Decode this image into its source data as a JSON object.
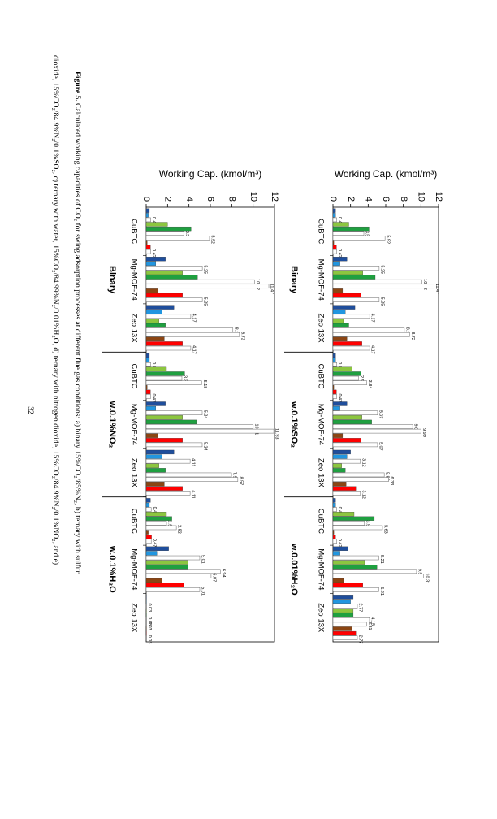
{
  "chart_data": [
    {
      "type": "bar",
      "ylabel": "Working Cap. (kmol/m³)",
      "groups": [
        "Binary",
        "w.0.1%SO₂",
        "w.0.01%H₂O"
      ],
      "categories": [
        "CuBTC",
        "Mg-MOF-74",
        "Zeo 13X",
        "CuBTC",
        "Mg-MOF-74",
        "Zeo 13X",
        "CuBTC",
        "Mg-MOF-74",
        "Zeo 13X"
      ],
      "ylim": [
        0,
        12
      ],
      "yticks": [
        0,
        2,
        4,
        6,
        8,
        10,
        12
      ],
      "series": [
        {
          "color": "#1f4e9c",
          "values": [
            0.3,
            1.6,
            2.5,
            0.3,
            1.6,
            2.0,
            0.3,
            1.7,
            2.3
          ]
        },
        {
          "color": "#2196e0",
          "values": [
            0.3,
            0.8,
            1.4,
            0.3,
            0.8,
            1.6,
            0.3,
            0.8,
            2.0
          ]
        },
        {
          "color": "#8cc63f",
          "values": [
            1.8,
            3.4,
            1.2,
            2.2,
            3.3,
            1.0,
            2.4,
            3.6,
            2.3
          ]
        },
        {
          "color": "#1fa040",
          "values": [
            4.1,
            4.8,
            1.8,
            3.2,
            4.4,
            1.4,
            4.7,
            5.0,
            2.3
          ]
        },
        {
          "color": "#8b4513",
          "values": [
            0.1,
            1.1,
            1.6,
            0.1,
            1.1,
            1.5,
            0.1,
            1.2,
            2.2
          ]
        },
        {
          "color": "#ff0000",
          "values": [
            0.4,
            3.2,
            3.3,
            0.4,
            3.2,
            2.6,
            0.3,
            3.4,
            2.6
          ]
        }
      ],
      "outline": {
        "color": "#ffffff",
        "series": [
          {
            "values": [
              0.42,
              5.25,
              4.17,
              0.43,
              5.07,
              3.12,
              0.42,
              5.21,
              2.77
            ],
            "value_labels": [
              "0.42",
              "5.25",
              "4.17",
              "0.43",
              "5.07",
              "3.12",
              "0.42",
              "5.21",
              "2.77"
            ]
          },
          {
            "values": [
              3.51,
              10.12,
              8.11,
              2.91,
              9.06,
              5.83,
              3.58,
              9.5,
              4.15
            ],
            "value_labels": [
              "3.51",
              "10.12",
              "8.11",
              "2.91",
              "9.06",
              "5.83",
              "3.58",
              "9.50",
              "4.15"
            ]
          },
          {
            "values": [
              5.92,
              11.47,
              8.72,
              3.84,
              9.99,
              6.33,
              5.63,
              10.31,
              3.81
            ],
            "value_labels": [
              "5.92",
              "11.47",
              "8.72",
              "3.84",
              "9.99",
              "6.33",
              "5.63",
              "10.31",
              "3.81"
            ]
          },
          {
            "values": [
              0.42,
              5.25,
              4.17,
              0.43,
              5.07,
              3.12,
              0.42,
              5.21,
              2.77
            ],
            "value_labels": [
              "0.42",
              "5.25",
              "4.17",
              "0.43",
              "5.07",
              "3.12",
              "0.42",
              "5.21",
              "2.77"
            ]
          }
        ]
      }
    },
    {
      "type": "bar",
      "ylabel": "Working Cap. (kmol/m³)",
      "groups": [
        "Binary",
        "w.0.1%NO₂",
        "w.0.1%H₂O"
      ],
      "categories": [
        "CuBTC",
        "Mg-MOF-74",
        "Zeo 13X",
        "CuBTC",
        "Mg-MOF-74",
        "Zeo 13X",
        "CuBTC",
        "Mg-MOF-74",
        "Zeo 13X"
      ],
      "ylim": [
        0,
        12
      ],
      "yticks": [
        0,
        2,
        4,
        6,
        8,
        10,
        12
      ],
      "series": [
        {
          "color": "#1f4e9c",
          "values": [
            0.3,
            1.8,
            2.6,
            0.3,
            1.8,
            2.6,
            0.4,
            2.1,
            0.03
          ]
        },
        {
          "color": "#2196e0",
          "values": [
            0.2,
            0.9,
            1.5,
            0.3,
            0.9,
            1.5,
            0.3,
            1.0,
            0.03
          ]
        },
        {
          "color": "#8cc63f",
          "values": [
            2.0,
            3.4,
            1.2,
            1.9,
            3.4,
            1.2,
            1.9,
            3.9,
            0.03
          ]
        },
        {
          "color": "#1fa040",
          "values": [
            4.2,
            4.8,
            1.8,
            3.6,
            4.7,
            1.8,
            2.4,
            3.9,
            0.03
          ]
        },
        {
          "color": "#8b4513",
          "values": [
            0.1,
            1.1,
            1.7,
            0.1,
            1.1,
            1.7,
            0.2,
            1.5,
            0.03
          ]
        },
        {
          "color": "#ff0000",
          "values": [
            0.4,
            3.4,
            3.4,
            0.4,
            3.4,
            3.4,
            0.5,
            3.5,
            0.03
          ]
        }
      ],
      "outline": {
        "color": "#ffffff",
        "series": [
          {
            "values": [
              0.42,
              5.25,
              4.17,
              0.42,
              5.24,
              4.11,
              0.47,
              5.01,
              0.03
            ],
            "value_labels": [
              "0.42",
              "5.25",
              "4.17",
              "0.42",
              "5.24",
              "4.11",
              "0.47",
              "5.01",
              "0.03"
            ]
          },
          {
            "values": [
              3.51,
              10.12,
              8.11,
              3.34,
              10.01,
              7.98,
              1.9,
              6.94,
              0.03
            ],
            "value_labels": [
              "3.51",
              "10.12",
              "8.11",
              "3.34",
              "10.01",
              "7.98",
              "1.90",
              "6.94",
              "0.03"
            ]
          },
          {
            "values": [
              5.92,
              11.47,
              8.72,
              5.18,
              11.93,
              8.57,
              2.82,
              6.07,
              0.03
            ],
            "value_labels": [
              "5.92",
              "11.47",
              "8.72",
              "5.18",
              "11.93",
              "8.57",
              "2.82",
              "6.07",
              "0.03"
            ]
          },
          {
            "values": [
              0.42,
              5.25,
              4.17,
              0.42,
              5.24,
              4.11,
              0.47,
              5.01,
              0.03
            ],
            "value_labels": [
              "0.42",
              "5.25",
              "4.17",
              "0.42",
              "5.24",
              "4.11",
              "0.47",
              "5.01",
              "0.03"
            ]
          }
        ]
      }
    }
  ],
  "caption": {
    "label": "Figure 5.",
    "lines": [
      "Calculated working capacities of CO₂ for swing adsorption processes at different flue gas conditions: a) binary 15%CO₂/85%N₂, b) ternary with sulfur",
      "dioxide, 15%CO₂/84.9%N₂/0.1%SO₂, c) ternary with water, 15%CO₂/84.99%N₂/0.01%H₂O, d) ternary with nitrogen dioxide, 15%CO₂/84.9%N₂/0.1%NO₂, and e)"
    ]
  },
  "page_number": "32"
}
